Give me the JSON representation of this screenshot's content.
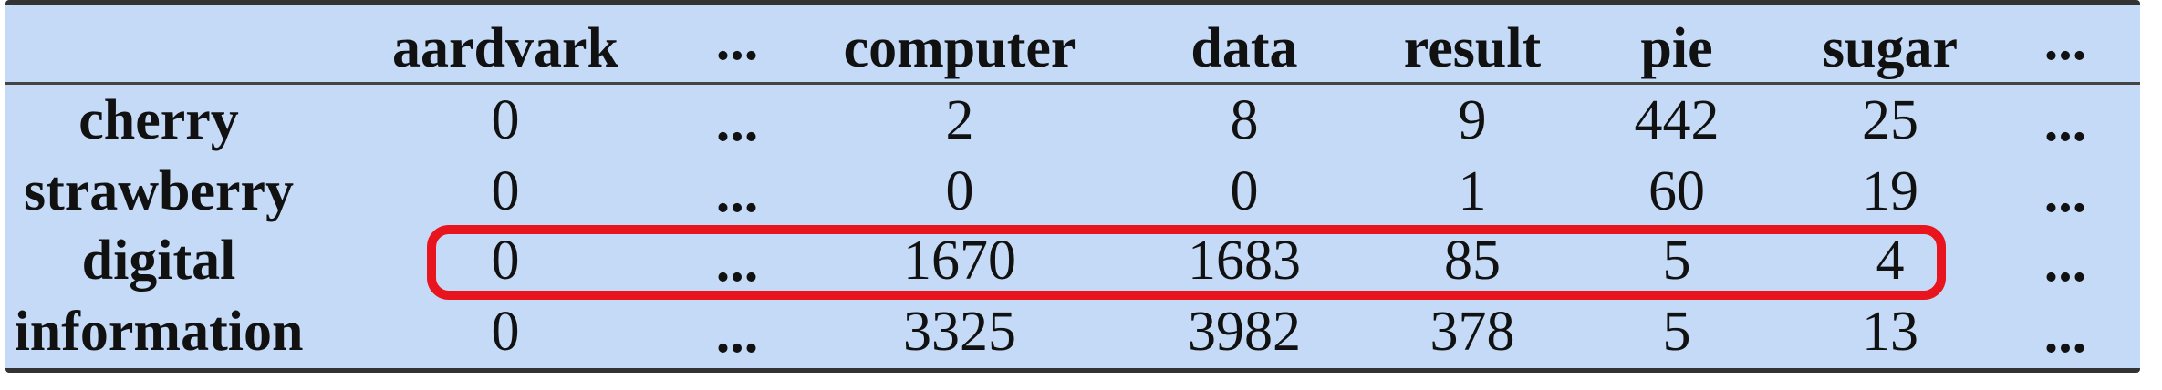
{
  "columns": [
    "aardvark",
    "...",
    "computer",
    "data",
    "result",
    "pie",
    "sugar",
    "..."
  ],
  "rows": [
    {
      "label": "cherry",
      "values": [
        "0",
        "...",
        "2",
        "8",
        "9",
        "442",
        "25",
        "..."
      ]
    },
    {
      "label": "strawberry",
      "values": [
        "0",
        "...",
        "0",
        "0",
        "1",
        "60",
        "19",
        "..."
      ]
    },
    {
      "label": "digital",
      "values": [
        "0",
        "...",
        "1670",
        "1683",
        "85",
        "5",
        "4",
        "..."
      ]
    },
    {
      "label": "information",
      "values": [
        "0",
        "...",
        "3325",
        "3982",
        "378",
        "5",
        "13",
        "..."
      ]
    }
  ],
  "highlight": {
    "row": "digital",
    "color": "#e8141e"
  },
  "colors": {
    "background": "#c5daf7",
    "rule": "#333333",
    "text": "#111111"
  }
}
